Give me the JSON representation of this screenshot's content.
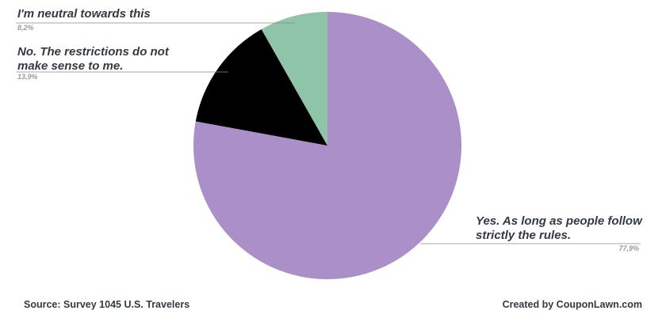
{
  "chart_data": {
    "type": "pie",
    "slices": [
      {
        "label_lines": [
          "Yes. As long as people follow",
          "strictly the rules."
        ],
        "value": 77.9,
        "value_label": "77,9%",
        "color": "#ab8fc8"
      },
      {
        "label_lines": [
          "No. The restrictions do not",
          "make sense to me."
        ],
        "value": 13.9,
        "value_label": "13,9%",
        "color": "#000000"
      },
      {
        "label_lines": [
          "I'm neutral towards this"
        ],
        "value": 8.2,
        "value_label": "8,2%",
        "color": "#8fc4a8"
      }
    ],
    "start": "12 o'clock",
    "direction": "clockwise"
  },
  "footer": {
    "source": "Source: Survey 1045 U.S. Travelers",
    "credit": "Created by CouponLawn.com"
  }
}
